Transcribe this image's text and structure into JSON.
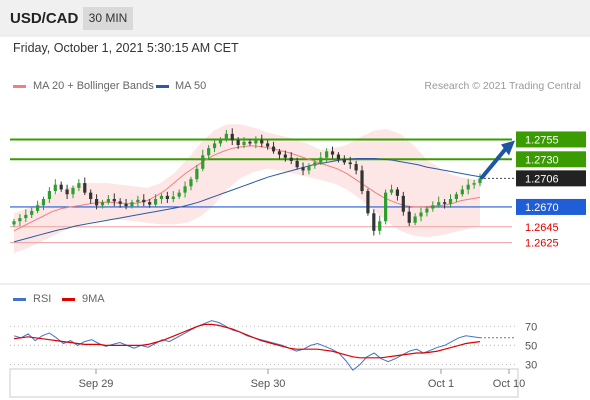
{
  "header": {
    "symbol": "USD/CAD",
    "timeframe": "30 MIN"
  },
  "timestamp": "Friday, October 1, 2021 5:30:15 AM CET",
  "legend": {
    "bb_label": "MA 20 + Bollinger Bands",
    "bb_color": "#f08080",
    "ma50_label": "MA 50",
    "ma50_color": "#2c5aa0",
    "credit": "Research © 2021 Trading Central"
  },
  "rsi_legend": {
    "rsi_label": "RSI",
    "rsi_color": "#4472c4",
    "ma_label": "9MA",
    "ma_color": "#e00000"
  },
  "chart_data": [
    {
      "type": "line",
      "title": "",
      "price_range": [
        1.2612,
        1.2782
      ],
      "current_price": 1.2706,
      "levels": [
        {
          "value": 1.2755,
          "label": "1.2755",
          "role": "resistance",
          "color": "#3a9c00"
        },
        {
          "value": 1.273,
          "label": "1.2730",
          "role": "resistance",
          "color": "#3a9c00"
        },
        {
          "value": 1.2706,
          "label": "1.2706",
          "role": "current",
          "color": "#222222"
        },
        {
          "value": 1.267,
          "label": "1.2670",
          "role": "pivot",
          "color": "#1f5ed6"
        },
        {
          "value": 1.2645,
          "label": "1.2645",
          "role": "support",
          "color": "#e00000"
        },
        {
          "value": 1.2625,
          "label": "1.2625",
          "role": "support",
          "color": "#e00000"
        }
      ],
      "x_ticks": [
        "Sep 29",
        "Sep 30",
        "Oct 1",
        "Oct 10"
      ],
      "close": [
        1.2652,
        1.2656,
        1.266,
        1.2665,
        1.2672,
        1.268,
        1.269,
        1.2698,
        1.2692,
        1.2686,
        1.2694,
        1.27,
        1.2688,
        1.268,
        1.2672,
        1.2676,
        1.268,
        1.2677,
        1.2674,
        1.2671,
        1.2676,
        1.2679,
        1.2676,
        1.2673,
        1.268,
        1.2684,
        1.268,
        1.2683,
        1.2688,
        1.2696,
        1.2705,
        1.2718,
        1.2735,
        1.2744,
        1.275,
        1.2755,
        1.2762,
        1.2754,
        1.2748,
        1.2752,
        1.275,
        1.2754,
        1.275,
        1.2746,
        1.274,
        1.2736,
        1.2732,
        1.2728,
        1.272,
        1.2716,
        1.2722,
        1.2726,
        1.2732,
        1.274,
        1.2736,
        1.273,
        1.2726,
        1.2724,
        1.2716,
        1.269,
        1.2662,
        1.264,
        1.2652,
        1.2688,
        1.2692,
        1.2684,
        1.2664,
        1.265,
        1.2658,
        1.2663,
        1.2668,
        1.2672,
        1.2676,
        1.2674,
        1.268,
        1.2686,
        1.2692,
        1.2698,
        1.27,
        1.2706
      ],
      "ma50": [
        1.2626,
        1.2629,
        1.2632,
        1.2635,
        1.2638,
        1.2641,
        1.2643,
        1.2646,
        1.2648,
        1.265,
        1.2652,
        1.2654,
        1.2656,
        1.2658,
        1.266,
        1.2662,
        1.2664,
        1.2666,
        1.2668,
        1.267,
        1.2673,
        1.2676,
        1.268,
        1.2684,
        1.2688,
        1.2692,
        1.2696,
        1.27,
        1.2704,
        1.2708,
        1.2711,
        1.2714,
        1.2717,
        1.272,
        1.2723,
        1.2725,
        1.2727,
        1.2729,
        1.273,
        1.2731,
        1.2731,
        1.2731,
        1.273,
        1.2729,
        1.2727,
        1.2725,
        1.2723,
        1.272,
        1.2718,
        1.2716,
        1.2714,
        1.2712,
        1.271,
        1.2708
      ],
      "ma20": [
        1.264,
        1.2646,
        1.2652,
        1.2658,
        1.2664,
        1.2668,
        1.267,
        1.2672,
        1.2674,
        1.2676,
        1.2676,
        1.2675,
        1.2674,
        1.2675,
        1.2678,
        1.2684,
        1.2692,
        1.2702,
        1.2712,
        1.272,
        1.2728,
        1.2735,
        1.274,
        1.2744,
        1.2746,
        1.2747,
        1.2746,
        1.2744,
        1.2741,
        1.2738,
        1.2734,
        1.273,
        1.2726,
        1.2722,
        1.2718,
        1.2712,
        1.2704,
        1.2696,
        1.2688,
        1.2681,
        1.2676,
        1.2672,
        1.267,
        1.267,
        1.2671,
        1.2672,
        1.2674,
        1.2678,
        1.268,
        1.2682
      ],
      "bb_upper": [
        1.2662,
        1.2668,
        1.2676,
        1.2686,
        1.2694,
        1.27,
        1.27,
        1.27,
        1.2698,
        1.2696,
        1.2694,
        1.27,
        1.2712,
        1.273,
        1.275,
        1.2766,
        1.2774,
        1.2774,
        1.277,
        1.2764,
        1.276,
        1.2756,
        1.275,
        1.2742,
        1.2744,
        1.2748,
        1.2758,
        1.2766,
        1.2768,
        1.2762,
        1.2748,
        1.273,
        1.2718,
        1.271,
        1.2706,
        1.2704
      ],
      "bb_lower": [
        1.2612,
        1.2618,
        1.2626,
        1.2634,
        1.2642,
        1.2648,
        1.2652,
        1.2654,
        1.2654,
        1.2652,
        1.265,
        1.2648,
        1.2648,
        1.265,
        1.2658,
        1.2672,
        1.2692,
        1.2706,
        1.2714,
        1.2718,
        1.2716,
        1.2712,
        1.2708,
        1.2704,
        1.27,
        1.2692,
        1.268,
        1.2666,
        1.2652,
        1.264,
        1.2634,
        1.2632,
        1.2634,
        1.2638,
        1.2642,
        1.2646
      ],
      "projection": {
        "from": 1.2706,
        "to": 1.2755
      }
    },
    {
      "type": "line",
      "title": "",
      "ylim": [
        20,
        85
      ],
      "y_ticks": [
        70,
        50,
        30
      ],
      "series": [
        {
          "name": "RSI",
          "values": [
            60,
            58,
            62,
            55,
            60,
            63,
            58,
            52,
            55,
            50,
            54,
            56,
            52,
            49,
            51,
            53,
            50,
            47,
            50,
            48,
            52,
            56,
            54,
            58,
            62,
            66,
            70,
            73,
            76,
            74,
            70,
            66,
            64,
            60,
            58,
            56,
            54,
            52,
            50,
            47,
            44,
            46,
            50,
            52,
            49,
            46,
            42,
            34,
            24,
            30,
            38,
            42,
            36,
            33,
            36,
            40,
            44,
            46,
            42,
            45,
            48,
            50,
            54,
            58,
            60,
            59,
            58
          ]
        },
        {
          "name": "9MA",
          "values": [
            57,
            58,
            59,
            58,
            57,
            56,
            55,
            54,
            53,
            52,
            51,
            51,
            51,
            50,
            50,
            50,
            50,
            50,
            50,
            51,
            53,
            55,
            58,
            61,
            64,
            67,
            70,
            72,
            72,
            71,
            69,
            67,
            64,
            61,
            58,
            55,
            53,
            51,
            49,
            47,
            46,
            46,
            46,
            46,
            45,
            44,
            42,
            40,
            38,
            37,
            37,
            37,
            37,
            38,
            39,
            40,
            41,
            42,
            42,
            43,
            44,
            46,
            48,
            50,
            52,
            53,
            54
          ]
        }
      ]
    }
  ]
}
